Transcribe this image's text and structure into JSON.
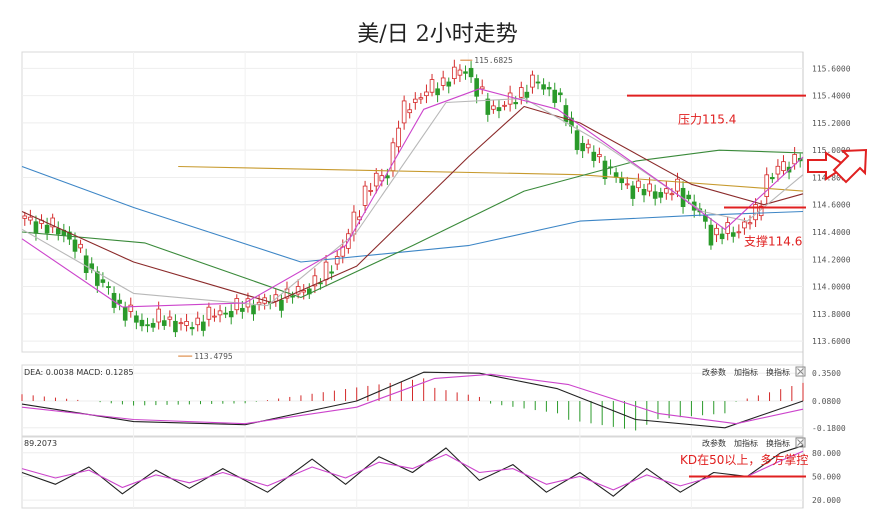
{
  "title": "美/日 2小时走势",
  "chart_data": [
    {
      "type": "candlestick",
      "panel": "main",
      "y_ticks": [
        "115.6000",
        "115.4000",
        "115.2000",
        "115.0000",
        "114.8000",
        "114.6000",
        "114.4000",
        "114.2000",
        "114.0000",
        "113.8000",
        "113.6000"
      ],
      "ylim": [
        113.52,
        115.72
      ],
      "high_label": "115.6825",
      "low_label": "113.4795",
      "annotations": {
        "resistance_label": "压力115.4",
        "resistance_level": 115.4,
        "support_label": "支撑114.6",
        "support_level": 114.58
      },
      "price_path": [
        [
          0,
          114.5
        ],
        [
          8,
          114.4
        ],
        [
          14,
          114.05
        ],
        [
          18,
          113.85
        ],
        [
          22,
          113.72
        ],
        [
          26,
          113.76
        ],
        [
          30,
          113.7
        ],
        [
          34,
          113.78
        ],
        [
          38,
          113.83
        ],
        [
          42,
          113.87
        ],
        [
          46,
          113.9
        ],
        [
          50,
          113.96
        ],
        [
          54,
          114.05
        ],
        [
          58,
          114.28
        ],
        [
          62,
          114.7
        ],
        [
          66,
          114.85
        ],
        [
          68,
          115.2
        ],
        [
          70,
          115.35
        ],
        [
          74,
          115.45
        ],
        [
          78,
          115.55
        ],
        [
          80,
          115.6
        ],
        [
          82,
          115.45
        ],
        [
          84,
          115.3
        ],
        [
          88,
          115.35
        ],
        [
          92,
          115.5
        ],
        [
          96,
          115.42
        ],
        [
          100,
          115.05
        ],
        [
          104,
          114.92
        ],
        [
          108,
          114.75
        ],
        [
          112,
          114.7
        ],
        [
          116,
          114.68
        ],
        [
          118,
          114.72
        ],
        [
          122,
          114.52
        ],
        [
          124,
          114.38
        ],
        [
          128,
          114.4
        ],
        [
          132,
          114.52
        ],
        [
          134,
          114.8
        ],
        [
          138,
          114.9
        ],
        [
          140,
          114.98
        ]
      ],
      "series": [
        {
          "color": "#c79a2e",
          "points": [
            [
              28,
              114.88
            ],
            [
              100,
              114.82
            ],
            [
              140,
              114.7
            ]
          ]
        },
        {
          "color": "#3d86c6",
          "points": [
            [
              0,
              114.88
            ],
            [
              20,
              114.58
            ],
            [
              50,
              114.18
            ],
            [
              80,
              114.3
            ],
            [
              100,
              114.48
            ],
            [
              120,
              114.52
            ],
            [
              140,
              114.55
            ]
          ]
        },
        {
          "color": "#3a8a3a",
          "points": [
            [
              0,
              114.4
            ],
            [
              22,
              114.32
            ],
            [
              50,
              113.92
            ],
            [
              70,
              114.3
            ],
            [
              90,
              114.7
            ],
            [
              110,
              114.92
            ],
            [
              125,
              115.0
            ],
            [
              140,
              114.98
            ]
          ]
        },
        {
          "color": "#8b2a2a",
          "points": [
            [
              0,
              114.55
            ],
            [
              20,
              114.18
            ],
            [
              45,
              113.88
            ],
            [
              60,
              114.15
            ],
            [
              80,
              114.95
            ],
            [
              90,
              115.32
            ],
            [
              100,
              115.2
            ],
            [
              120,
              114.75
            ],
            [
              133,
              114.6
            ],
            [
              140,
              114.68
            ]
          ]
        },
        {
          "color": "#b8b8b8",
          "points": [
            [
              0,
              114.42
            ],
            [
              20,
              113.95
            ],
            [
              44,
              113.86
            ],
            [
              60,
              114.4
            ],
            [
              76,
              115.35
            ],
            [
              90,
              115.38
            ],
            [
              104,
              115.05
            ],
            [
              122,
              114.55
            ],
            [
              130,
              114.48
            ],
            [
              140,
              114.82
            ]
          ]
        },
        {
          "color": "#cc44cc",
          "points": [
            [
              0,
              114.35
            ],
            [
              18,
              113.85
            ],
            [
              40,
              113.88
            ],
            [
              58,
              114.3
            ],
            [
              72,
              115.3
            ],
            [
              82,
              115.45
            ],
            [
              96,
              115.3
            ],
            [
              116,
              114.72
            ],
            [
              126,
              114.42
            ],
            [
              140,
              114.95
            ]
          ]
        }
      ]
    },
    {
      "type": "line",
      "panel": "macd",
      "header": "DEA: 0.0038 MACD: 0.1285",
      "y_ticks": [
        "0.3500",
        "0.0800",
        "-0.1800"
      ],
      "ylim": [
        -0.26,
        0.43
      ],
      "tools": [
        "改参数",
        "加指标",
        "换指标"
      ],
      "series": [
        {
          "color": "#222222",
          "points": [
            [
              0,
              0.05
            ],
            [
              20,
              -0.12
            ],
            [
              40,
              -0.15
            ],
            [
              60,
              0.08
            ],
            [
              72,
              0.36
            ],
            [
              82,
              0.35
            ],
            [
              96,
              0.2
            ],
            [
              110,
              -0.1
            ],
            [
              126,
              -0.18
            ],
            [
              140,
              0.08
            ]
          ]
        },
        {
          "color": "#cc44cc",
          "points": [
            [
              0,
              0.02
            ],
            [
              20,
              -0.1
            ],
            [
              40,
              -0.14
            ],
            [
              60,
              0.02
            ],
            [
              74,
              0.3
            ],
            [
              84,
              0.34
            ],
            [
              98,
              0.24
            ],
            [
              114,
              -0.04
            ],
            [
              128,
              -0.14
            ],
            [
              140,
              0.0
            ]
          ]
        }
      ]
    },
    {
      "type": "line",
      "panel": "kd",
      "header": "89.2073",
      "y_ticks": [
        "80.000",
        "50.000",
        "20.000"
      ],
      "ylim": [
        10,
        100
      ],
      "tools": [
        "改参数",
        "加指标",
        "换指标"
      ],
      "annotations": {
        "kd_label": "KD在50以上，多方掌控",
        "kd_level": 50
      },
      "series": [
        {
          "color": "#222222",
          "points": [
            [
              0,
              55
            ],
            [
              6,
              40
            ],
            [
              12,
              62
            ],
            [
              18,
              28
            ],
            [
              24,
              58
            ],
            [
              30,
              35
            ],
            [
              36,
              60
            ],
            [
              44,
              30
            ],
            [
              52,
              72
            ],
            [
              58,
              40
            ],
            [
              64,
              75
            ],
            [
              70,
              55
            ],
            [
              76,
              86
            ],
            [
              82,
              45
            ],
            [
              88,
              65
            ],
            [
              94,
              30
            ],
            [
              100,
              55
            ],
            [
              106,
              25
            ],
            [
              112,
              60
            ],
            [
              118,
              30
            ],
            [
              124,
              55
            ],
            [
              130,
              50
            ],
            [
              136,
              80
            ],
            [
              140,
              89
            ]
          ]
        },
        {
          "color": "#cc44cc",
          "points": [
            [
              0,
              60
            ],
            [
              6,
              48
            ],
            [
              12,
              58
            ],
            [
              18,
              36
            ],
            [
              24,
              52
            ],
            [
              30,
              42
            ],
            [
              36,
              55
            ],
            [
              44,
              38
            ],
            [
              52,
              62
            ],
            [
              58,
              48
            ],
            [
              64,
              68
            ],
            [
              70,
              60
            ],
            [
              76,
              78
            ],
            [
              82,
              55
            ],
            [
              88,
              60
            ],
            [
              94,
              40
            ],
            [
              100,
              50
            ],
            [
              106,
              33
            ],
            [
              112,
              52
            ],
            [
              118,
              38
            ],
            [
              124,
              50
            ],
            [
              130,
              50
            ],
            [
              136,
              70
            ],
            [
              140,
              82
            ]
          ]
        }
      ]
    }
  ]
}
